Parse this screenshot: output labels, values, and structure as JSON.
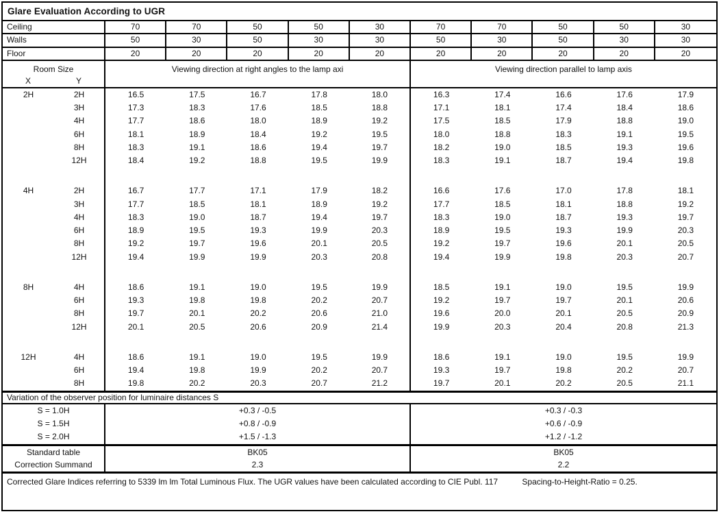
{
  "title": "Glare Evaluation According to UGR",
  "surface_reflectances": {
    "rows": [
      {
        "label": "Ceiling",
        "values": [
          "70",
          "70",
          "50",
          "50",
          "30",
          "70",
          "70",
          "50",
          "50",
          "30"
        ]
      },
      {
        "label": "Walls",
        "values": [
          "50",
          "30",
          "50",
          "30",
          "30",
          "50",
          "30",
          "50",
          "30",
          "30"
        ]
      },
      {
        "label": "Floor",
        "values": [
          "20",
          "20",
          "20",
          "20",
          "20",
          "20",
          "20",
          "20",
          "20",
          "20"
        ]
      }
    ]
  },
  "room_size_header": {
    "title": "Room Size",
    "x": "X",
    "y": "Y"
  },
  "viewing_direction_headers": {
    "left": "Viewing direction at right angles to the lamp axi",
    "right": "Viewing direction parallel to lamp axis"
  },
  "ugr_table": {
    "blocks": [
      {
        "x": "2H",
        "rows": [
          {
            "y": "2H",
            "values": [
              "16.5",
              "17.5",
              "16.7",
              "17.8",
              "18.0",
              "16.3",
              "17.4",
              "16.6",
              "17.6",
              "17.9"
            ]
          },
          {
            "y": "3H",
            "values": [
              "17.3",
              "18.3",
              "17.6",
              "18.5",
              "18.8",
              "17.1",
              "18.1",
              "17.4",
              "18.4",
              "18.6"
            ]
          },
          {
            "y": "4H",
            "values": [
              "17.7",
              "18.6",
              "18.0",
              "18.9",
              "19.2",
              "17.5",
              "18.5",
              "17.9",
              "18.8",
              "19.0"
            ]
          },
          {
            "y": "6H",
            "values": [
              "18.1",
              "18.9",
              "18.4",
              "19.2",
              "19.5",
              "18.0",
              "18.8",
              "18.3",
              "19.1",
              "19.5"
            ]
          },
          {
            "y": "8H",
            "values": [
              "18.3",
              "19.1",
              "18.6",
              "19.4",
              "19.7",
              "18.2",
              "19.0",
              "18.5",
              "19.3",
              "19.6"
            ]
          },
          {
            "y": "12H",
            "values": [
              "18.4",
              "19.2",
              "18.8",
              "19.5",
              "19.9",
              "18.3",
              "19.1",
              "18.7",
              "19.4",
              "19.8"
            ]
          }
        ]
      },
      {
        "x": "4H",
        "rows": [
          {
            "y": "2H",
            "values": [
              "16.7",
              "17.7",
              "17.1",
              "17.9",
              "18.2",
              "16.6",
              "17.6",
              "17.0",
              "17.8",
              "18.1"
            ]
          },
          {
            "y": "3H",
            "values": [
              "17.7",
              "18.5",
              "18.1",
              "18.9",
              "19.2",
              "17.7",
              "18.5",
              "18.1",
              "18.8",
              "19.2"
            ]
          },
          {
            "y": "4H",
            "values": [
              "18.3",
              "19.0",
              "18.7",
              "19.4",
              "19.7",
              "18.3",
              "19.0",
              "18.7",
              "19.3",
              "19.7"
            ]
          },
          {
            "y": "6H",
            "values": [
              "18.9",
              "19.5",
              "19.3",
              "19.9",
              "20.3",
              "18.9",
              "19.5",
              "19.3",
              "19.9",
              "20.3"
            ]
          },
          {
            "y": "8H",
            "values": [
              "19.2",
              "19.7",
              "19.6",
              "20.1",
              "20.5",
              "19.2",
              "19.7",
              "19.6",
              "20.1",
              "20.5"
            ]
          },
          {
            "y": "12H",
            "values": [
              "19.4",
              "19.9",
              "19.9",
              "20.3",
              "20.8",
              "19.4",
              "19.9",
              "19.8",
              "20.3",
              "20.7"
            ]
          }
        ]
      },
      {
        "x": "8H",
        "rows": [
          {
            "y": "4H",
            "values": [
              "18.6",
              "19.1",
              "19.0",
              "19.5",
              "19.9",
              "18.5",
              "19.1",
              "19.0",
              "19.5",
              "19.9"
            ]
          },
          {
            "y": "6H",
            "values": [
              "19.3",
              "19.8",
              "19.8",
              "20.2",
              "20.7",
              "19.2",
              "19.7",
              "19.7",
              "20.1",
              "20.6"
            ]
          },
          {
            "y": "8H",
            "values": [
              "19.7",
              "20.1",
              "20.2",
              "20.6",
              "21.0",
              "19.6",
              "20.0",
              "20.1",
              "20.5",
              "20.9"
            ]
          },
          {
            "y": "12H",
            "values": [
              "20.1",
              "20.5",
              "20.6",
              "20.9",
              "21.4",
              "19.9",
              "20.3",
              "20.4",
              "20.8",
              "21.3"
            ]
          }
        ]
      },
      {
        "x": "12H",
        "rows": [
          {
            "y": "4H",
            "values": [
              "18.6",
              "19.1",
              "19.0",
              "19.5",
              "19.9",
              "18.6",
              "19.1",
              "19.0",
              "19.5",
              "19.9"
            ]
          },
          {
            "y": "6H",
            "values": [
              "19.4",
              "19.8",
              "19.9",
              "20.2",
              "20.7",
              "19.3",
              "19.7",
              "19.8",
              "20.2",
              "20.7"
            ]
          },
          {
            "y": "8H",
            "values": [
              "19.8",
              "20.2",
              "20.3",
              "20.7",
              "21.2",
              "19.7",
              "20.1",
              "20.2",
              "20.5",
              "21.1"
            ]
          }
        ]
      }
    ]
  },
  "variation_section": {
    "header": "Variation of the observer position for luminaire distances S",
    "rows": [
      {
        "label": "S = 1.0H",
        "left": "+0.3 / -0.5",
        "right": "+0.3 / -0.3"
      },
      {
        "label": "S = 1.5H",
        "left": "+0.8 / -0.9",
        "right": "+0.6 / -0.9"
      },
      {
        "label": "S = 2.0H",
        "left": "+1.5 / -1.3",
        "right": "+1.2 / -1.2"
      }
    ]
  },
  "summary_section": {
    "rows": [
      {
        "label": "Standard table",
        "left": "BK05",
        "right": "BK05"
      },
      {
        "label": "Correction Summand",
        "left": "2.3",
        "right": "2.2"
      }
    ]
  },
  "footer": {
    "text": "Corrected Glare Indices referring to 5339 lm lm Total Luminous Flux. The UGR values have been calculated according to CIE Publ. 117",
    "ratio": "Spacing-to-Height-Ratio = 0.25."
  }
}
